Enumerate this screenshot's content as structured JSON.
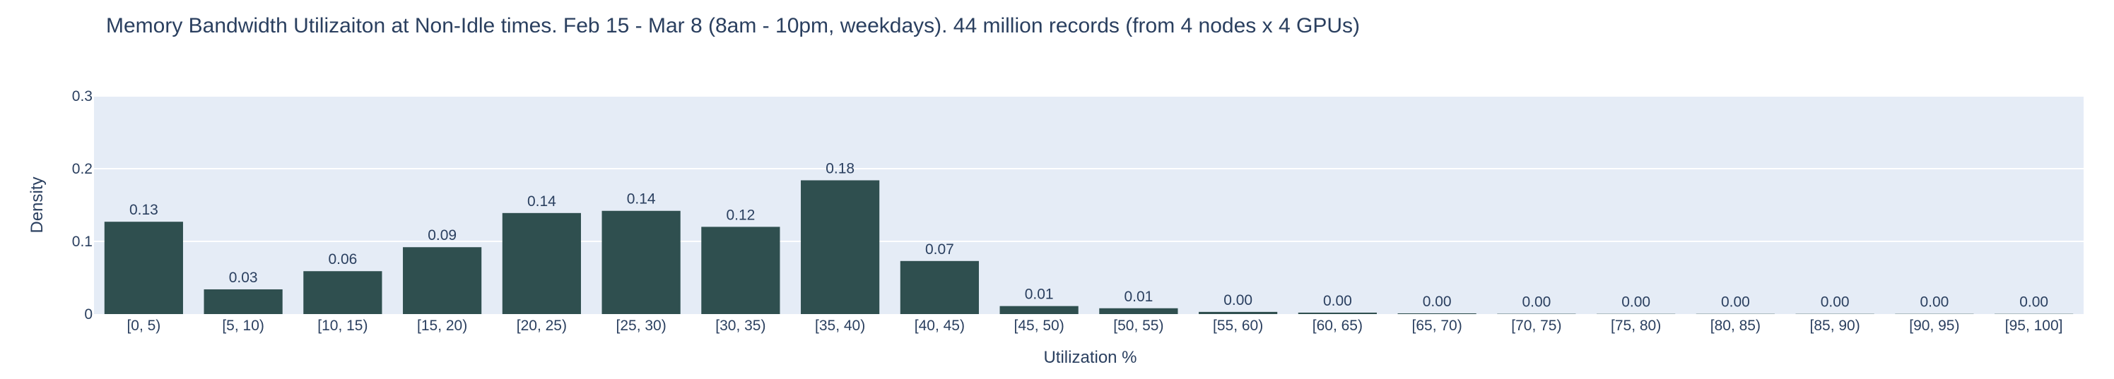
{
  "chart_data": {
    "type": "bar",
    "title": "Memory Bandwidth Utilizaiton at Non-Idle times. Feb 15 - Mar 8 (8am - 10pm, weekdays). 44 million records (from 4 nodes x 4 GPUs)",
    "xlabel": "Utilization %",
    "ylabel": "Density",
    "ylim": [
      0,
      0.3
    ],
    "yticks": [
      0,
      0.1,
      0.2,
      0.3
    ],
    "ytick_labels": [
      "0",
      "0.1",
      "0.2",
      "0.3"
    ],
    "grid": true,
    "categories": [
      "[0, 5)",
      "[5, 10)",
      "[10, 15)",
      "[15, 20)",
      "[20, 25)",
      "[25, 30)",
      "[30, 35)",
      "[35, 40)",
      "[40, 45)",
      "[45, 50)",
      "[50, 55)",
      "[55, 60)",
      "[60, 65)",
      "[65, 70)",
      "[70, 75)",
      "[75, 80)",
      "[80, 85)",
      "[85, 90)",
      "[90, 95)",
      "[95, 100]"
    ],
    "values": [
      0.127,
      0.034,
      0.059,
      0.092,
      0.139,
      0.142,
      0.12,
      0.184,
      0.073,
      0.011,
      0.008,
      0.003,
      0.002,
      0.001,
      0.0004,
      0.0003,
      0.0003,
      0.0003,
      0.0003,
      0.0003
    ],
    "data_labels": [
      "0.13",
      "0.03",
      "0.06",
      "0.09",
      "0.14",
      "0.14",
      "0.12",
      "0.18",
      "0.07",
      "0.01",
      "0.01",
      "0.00",
      "0.00",
      "0.00",
      "0.00",
      "0.00",
      "0.00",
      "0.00",
      "0.00",
      "0.00"
    ],
    "colors": {
      "bar": "#2f4f4f",
      "plot_bg": "#e5ecf6",
      "grid": "#ffffff",
      "text": "#2a3f5f"
    }
  }
}
